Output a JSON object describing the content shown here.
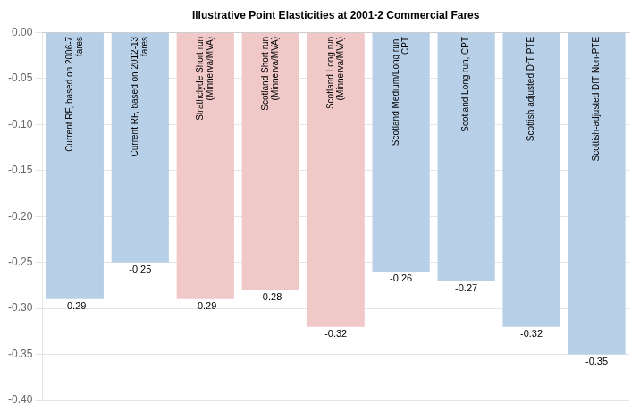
{
  "chart_data": {
    "type": "bar",
    "categories": [
      "Current RF, based on 2006-7\nfares",
      "Current RF, based on 2012-13\nfares",
      "Strathclyde Short run\n(Minnerva/MVA)",
      "Scotland Short run\n(Minnerva/MVA)",
      "Scotland Long run\n(Minnerva/MVA)",
      "Scotland Medium/Long run,\nCPT",
      "Scotland Long run, CPT",
      "Scottish adjusted DfT PTE",
      "Scottish-adjusted DfT Non-PTE"
    ],
    "values": [
      -0.29,
      -0.25,
      -0.29,
      -0.28,
      -0.32,
      -0.26,
      -0.27,
      -0.32,
      -0.35
    ],
    "colors": [
      "#b8cfe8",
      "#b8cfe8",
      "#f0c8c8",
      "#f0c8c8",
      "#f0c8c8",
      "#b8cfe8",
      "#b8cfe8",
      "#b8cfe8",
      "#b8cfe8"
    ],
    "ylim": [
      -0.4,
      0.0
    ],
    "yticks": [
      {
        "value": 0.0,
        "label": "0.00"
      },
      {
        "value": -0.05,
        "label": "-0.05"
      },
      {
        "value": -0.1,
        "label": "-0.10"
      },
      {
        "value": -0.15,
        "label": "-0.15"
      },
      {
        "value": -0.2,
        "label": "-0.20"
      },
      {
        "value": -0.25,
        "label": "-0.25"
      },
      {
        "value": -0.3,
        "label": "-0.30"
      },
      {
        "value": -0.35,
        "label": "-0.35"
      },
      {
        "value": -0.4,
        "label": "-0.40"
      }
    ],
    "xlabel": "Illustrative Point Elasticities at 2001-2 Commercial Fares",
    "data_labels": true,
    "grid": true,
    "tick_labels": "y"
  }
}
